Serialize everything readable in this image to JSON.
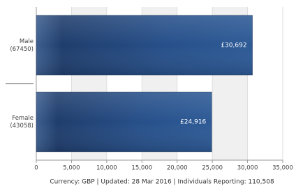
{
  "chart_data": {
    "type": "bar",
    "orientation": "horizontal",
    "categories": [
      [
        "Male",
        "(67450)"
      ],
      [
        "Female",
        "(43058)"
      ]
    ],
    "values": [
      30692,
      24916
    ],
    "value_labels": [
      "£30,692",
      "£24,916"
    ],
    "color": "#2a5289",
    "xlim": [
      0,
      35000
    ],
    "xticks": [
      0,
      {
        "value": 5000,
        "label": "5,000"
      },
      {
        "value": 10000,
        "label": "10,000"
      },
      {
        "value": 15000,
        "label": "15,000"
      },
      {
        "value": 20000,
        "label": "20,000"
      },
      {
        "value": 25000,
        "label": "25,000"
      },
      {
        "value": 30000,
        "label": "30,000"
      },
      {
        "value": 35000,
        "label": "35,000"
      }
    ],
    "grid": true,
    "footer": "Currency: GBP  |  Updated: 28 Mar 2016  |  Individuals Reporting: 110,508"
  }
}
